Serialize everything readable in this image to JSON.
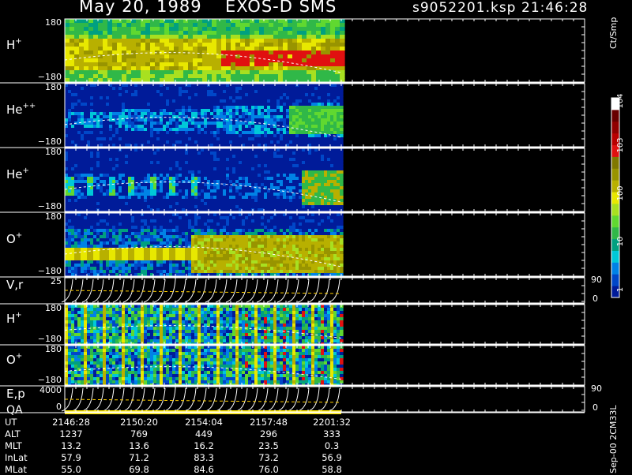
{
  "header": {
    "date": "May 20, 1989",
    "instrument": "EXOS-D SMS",
    "file": "s9052201.ksp",
    "time": "21:46:28"
  },
  "colorbar": {
    "unit": "Ct/Smp",
    "ticks": [
      "1",
      "10",
      "100",
      "10^3",
      "10^4"
    ],
    "colors": [
      "#001b99",
      "#0047c8",
      "#0082e6",
      "#00c8d8",
      "#00a080",
      "#30b848",
      "#60d830",
      "#a8e020",
      "#e8e800",
      "#b8b000",
      "#989400",
      "#807800",
      "#e01010",
      "#b80000",
      "#900000",
      "#680000",
      "#ffffff"
    ]
  },
  "footer_note": "Sep-00 2CM33L",
  "chart_data": [
    {
      "type": "heatmap",
      "label": "H",
      "superscript": "+",
      "y_ticks": [
        "180",
        "−180"
      ],
      "ylim": [
        -180,
        180
      ],
      "data_end_fraction_of_time": 0.54
    },
    {
      "type": "heatmap",
      "label": "He",
      "superscript": "++",
      "y_ticks": [
        "180",
        "−180"
      ],
      "ylim": [
        -180,
        180
      ]
    },
    {
      "type": "heatmap",
      "label": "He",
      "superscript": "+",
      "y_ticks": [
        "180",
        "−180"
      ],
      "ylim": [
        -180,
        180
      ]
    },
    {
      "type": "heatmap",
      "label": "O",
      "superscript": "+",
      "y_ticks": [
        "180",
        "−180"
      ],
      "ylim": [
        -180,
        180
      ]
    },
    {
      "type": "line",
      "label": "V,r",
      "y_ticks": [
        "25"
      ],
      "right_ticks": [
        "90",
        "0"
      ]
    },
    {
      "type": "heatmap",
      "label": "H",
      "superscript": "+",
      "y_ticks": [
        "180",
        "−180"
      ],
      "ylim": [
        -180,
        180
      ]
    },
    {
      "type": "heatmap",
      "label": "O",
      "superscript": "+",
      "y_ticks": [
        "180",
        "−180"
      ],
      "ylim": [
        -180,
        180
      ]
    },
    {
      "type": "line",
      "label": "E,p",
      "label2": "QA",
      "y_ticks": [
        "4000",
        "0"
      ],
      "right_ticks": [
        "90",
        "0"
      ]
    }
  ],
  "table": {
    "rows": [
      {
        "label": "UT",
        "values": [
          "2146:28",
          "2150:20",
          "2154:04",
          "2157:48",
          "2201:32"
        ]
      },
      {
        "label": "ALT",
        "values": [
          "1237",
          "769",
          "449",
          "296",
          "333"
        ]
      },
      {
        "label": "MLT",
        "values": [
          "13.2",
          "13.6",
          "16.2",
          "23.5",
          "0.3"
        ]
      },
      {
        "label": "InLat",
        "values": [
          "57.9",
          "71.2",
          "83.3",
          "73.2",
          "56.9"
        ]
      },
      {
        "label": "MLat",
        "values": [
          "55.0",
          "69.8",
          "84.6",
          "76.0",
          "58.8"
        ]
      }
    ]
  }
}
